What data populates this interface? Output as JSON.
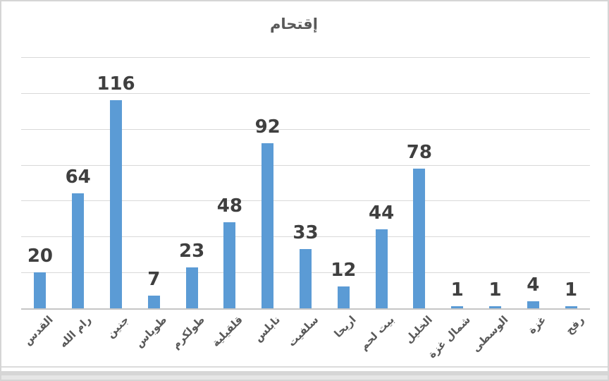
{
  "chart_data": {
    "type": "bar",
    "title": "إقتحام",
    "categories": [
      "القدس",
      "رام الله",
      "جنين",
      "طوباس",
      "طولكرم",
      "قلقيلية",
      "نابلس",
      "سلفيت",
      "اريحا",
      "بيت لحم",
      "الخليل",
      "شمال غزة",
      "الوسطى",
      "غزة",
      "رفح"
    ],
    "values": [
      20,
      64,
      116,
      7,
      23,
      48,
      92,
      33,
      12,
      44,
      78,
      1,
      1,
      4,
      1
    ],
    "xlabel": "",
    "ylabel": "",
    "ylim": [
      0,
      140
    ],
    "gridline_step": 20,
    "grid": true,
    "legend_position": "none",
    "data_labels": "outside-end",
    "category_label_rotation_deg": -45,
    "colors": {
      "bar": "#5b9bd5",
      "gridline": "#d9d9d9",
      "axis_line": "#c6c6c6",
      "data_label": "#3f3f3f",
      "category_label": "#595959",
      "title": "#595959",
      "chart_border": "#d5d5d5",
      "background": "#ffffff"
    }
  }
}
